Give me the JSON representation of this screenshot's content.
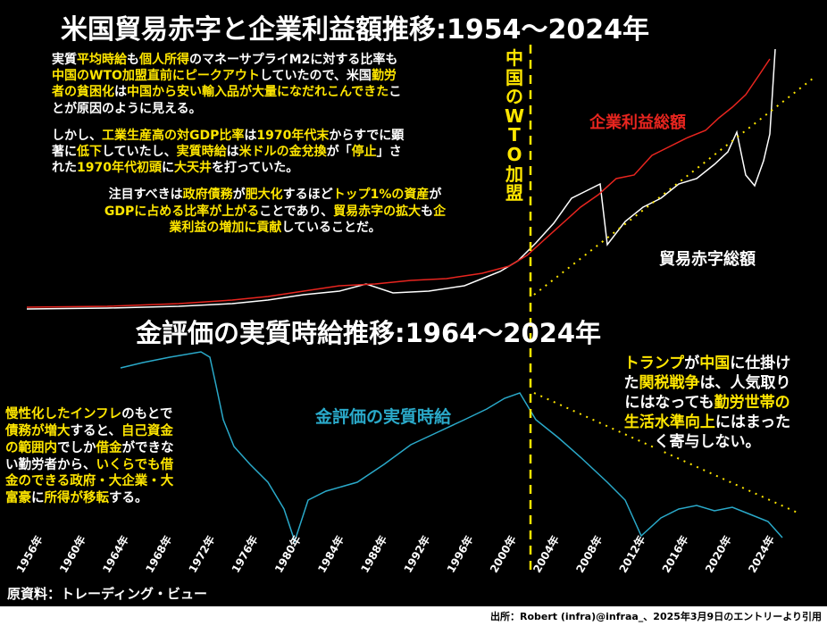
{
  "top_title": "米国貿易赤字と企業利益額推移:1954〜2024年",
  "bottom_title": "金評価の実質時給推移:1964〜2024年",
  "wto_label": "中国のWTO加盟",
  "profit_label": "企業利益総額",
  "trade_label": "貿易赤字総額",
  "wage_label": "金評価の実質時給",
  "top_paragraphs": [
    {
      "lines": [
        [
          {
            "text": "実質"
          },
          {
            "text": "平均時給",
            "highlight": true
          },
          {
            "text": "も"
          },
          {
            "text": "個人所得",
            "highlight": true
          },
          {
            "text": "のマネーサプライM2に対する比率も"
          }
        ],
        [
          {
            "text": "中国のWTO加盟直前にピークアウト",
            "highlight": true
          },
          {
            "text": "していたので、米国"
          },
          {
            "text": "勤労",
            "highlight": true
          }
        ],
        [
          {
            "text": "者の貧困化",
            "highlight": true
          },
          {
            "text": "は"
          },
          {
            "text": "中国から安い輸入品が大量になだれこんできた",
            "highlight": true
          },
          {
            "text": "こ"
          }
        ],
        [
          {
            "text": "とが原因のように見える。"
          }
        ]
      ]
    },
    {
      "lines": [
        [
          {
            "text": "しかし、"
          },
          {
            "text": "工業生産高の対GDP比率",
            "highlight": true
          },
          {
            "text": "は"
          },
          {
            "text": "1970年代末",
            "highlight": true
          },
          {
            "text": "からすでに顕"
          }
        ],
        [
          {
            "text": "著に"
          },
          {
            "text": "低下",
            "highlight": true
          },
          {
            "text": "していたし、"
          },
          {
            "text": "実質時給",
            "highlight": true
          },
          {
            "text": "は"
          },
          {
            "text": "米ドルの金兌換",
            "highlight": true
          },
          {
            "text": "が「"
          },
          {
            "text": "停止",
            "highlight": true
          },
          {
            "text": "」さ"
          }
        ],
        [
          {
            "text": "れた"
          },
          {
            "text": "1970年代初頭",
            "highlight": true
          },
          {
            "text": "に"
          },
          {
            "text": "大天井",
            "highlight": true
          },
          {
            "text": "を打っていた。"
          }
        ]
      ]
    },
    {
      "lines": [
        [
          {
            "text": "注目すべきは"
          },
          {
            "text": "政府債務",
            "highlight": true
          },
          {
            "text": "が"
          },
          {
            "text": "肥大化",
            "highlight": true
          },
          {
            "text": "するほど"
          },
          {
            "text": "トップ1%の資産",
            "highlight": true
          },
          {
            "text": "が"
          }
        ],
        [
          {
            "text": "GDPに占める比率が上がる",
            "highlight": true
          },
          {
            "text": "ことであり、"
          },
          {
            "text": "貿易赤字の拡大",
            "highlight": true
          },
          {
            "text": "も"
          },
          {
            "text": "企",
            "highlight": true
          }
        ],
        [
          {
            "text": "業利益の増加に貢献",
            "highlight": true
          },
          {
            "text": "していることだ。"
          }
        ]
      ]
    }
  ],
  "left_paragraph": {
    "lines": [
      [
        {
          "text": "慢性化したインフレ",
          "highlight": true
        },
        {
          "text": "のもとで"
        }
      ],
      [
        {
          "text": "債務が増大",
          "highlight": true
        },
        {
          "text": "すると、"
        },
        {
          "text": "自己資金",
          "highlight": true
        }
      ],
      [
        {
          "text": "の範囲内",
          "highlight": true
        },
        {
          "text": "でしか"
        },
        {
          "text": "借金",
          "highlight": true
        },
        {
          "text": "ができな"
        }
      ],
      [
        {
          "text": "い勤労者から、"
        },
        {
          "text": "いくらでも借",
          "highlight": true
        }
      ],
      [
        {
          "text": "金のできる",
          "highlight": true
        },
        {
          "text": "政府・大企業・大",
          "highlight": true
        }
      ],
      [
        {
          "text": "富豪",
          "highlight": true
        },
        {
          "text": "に"
        },
        {
          "text": "所得が移転",
          "highlight": true
        },
        {
          "text": "する。"
        }
      ]
    ]
  },
  "right_paragraph": {
    "lines": [
      [
        {
          "text": "トランプ",
          "highlight": true
        },
        {
          "text": "が"
        },
        {
          "text": "中国",
          "highlight": true
        },
        {
          "text": "に仕掛け"
        }
      ],
      [
        {
          "text": "た"
        },
        {
          "text": "関税戦争",
          "highlight": true
        },
        {
          "text": "は、人気取り"
        }
      ],
      [
        {
          "text": "にはなっても"
        },
        {
          "text": "勤労世帯の",
          "highlight": true
        }
      ],
      [
        {
          "text": "生活水準向上",
          "highlight": true
        },
        {
          "text": "にはまった"
        }
      ],
      [
        {
          "text": "く寄与しない。"
        }
      ]
    ]
  },
  "x_labels": [
    "1956年",
    "1960年",
    "1964年",
    "1968年",
    "1972年",
    "1976年",
    "1980年",
    "1984年",
    "1988年",
    "1992年",
    "1996年",
    "2000年",
    "2004年",
    "2008年",
    "2012年",
    "2016年",
    "2020年",
    "2024年"
  ],
  "original_source": "原資料：トレーディング・ビュー",
  "source": "出所：Robert (infra)@infraa_、2025年3月9日のエントリーより引用"
}
